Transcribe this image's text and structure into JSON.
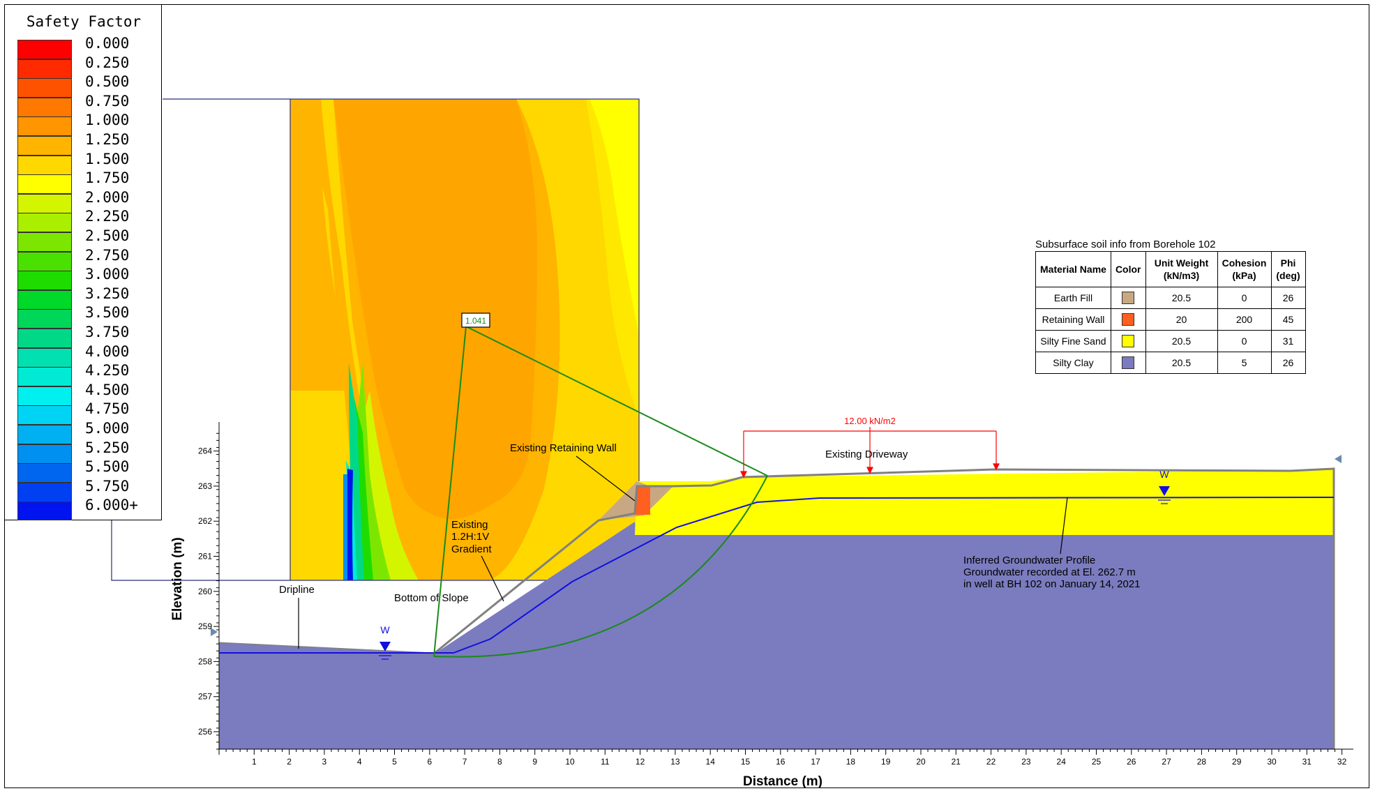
{
  "legend": {
    "title": "Safety Factor",
    "items": [
      {
        "label": "0.000",
        "color": "#ff0000"
      },
      {
        "label": "0.250",
        "color": "#ff2a00"
      },
      {
        "label": "0.500",
        "color": "#ff5200"
      },
      {
        "label": "0.750",
        "color": "#ff7800"
      },
      {
        "label": "1.000",
        "color": "#ff9500"
      },
      {
        "label": "1.250",
        "color": "#ffb400"
      },
      {
        "label": "1.500",
        "color": "#ffd800"
      },
      {
        "label": "1.750",
        "color": "#ffff00"
      },
      {
        "label": "2.000",
        "color": "#d4f500"
      },
      {
        "label": "2.250",
        "color": "#aaee00"
      },
      {
        "label": "2.500",
        "color": "#7de600"
      },
      {
        "label": "2.750",
        "color": "#4ae000"
      },
      {
        "label": "3.000",
        "color": "#1edc00"
      },
      {
        "label": "3.250",
        "color": "#00d82a"
      },
      {
        "label": "3.500",
        "color": "#00d65a"
      },
      {
        "label": "3.750",
        "color": "#00d888"
      },
      {
        "label": "4.000",
        "color": "#00e0b0"
      },
      {
        "label": "4.250",
        "color": "#00ead4"
      },
      {
        "label": "4.500",
        "color": "#00f0f0"
      },
      {
        "label": "4.750",
        "color": "#00d4f4"
      },
      {
        "label": "5.000",
        "color": "#00b0f0"
      },
      {
        "label": "5.250",
        "color": "#0090f0"
      },
      {
        "label": "5.500",
        "color": "#0066f0"
      },
      {
        "label": "5.750",
        "color": "#0040f0"
      },
      {
        "label": "6.000+",
        "color": "#0014f0"
      }
    ]
  },
  "axes": {
    "x_label": "Distance (m)",
    "y_label": "Elevation (m)",
    "x_ticks": [
      "1",
      "2",
      "3",
      "4",
      "5",
      "6",
      "7",
      "8",
      "9",
      "10",
      "11",
      "12",
      "13",
      "14",
      "15",
      "16",
      "17",
      "18",
      "19",
      "20",
      "21",
      "22",
      "23",
      "24",
      "25",
      "26",
      "27",
      "28",
      "29",
      "30",
      "31",
      "32"
    ],
    "y_ticks": [
      "256",
      "257",
      "258",
      "259",
      "260",
      "261",
      "262",
      "263",
      "264"
    ]
  },
  "slip_surface_factor": "1.041",
  "load_label": "12.00 kN/m2",
  "water_marker": "W",
  "annotations": {
    "retaining_wall": "Existing Retaining Wall",
    "driveway": "Existing Driveway",
    "gradient_line1": "Existing",
    "gradient_line2": "1.2H:1V",
    "gradient_line3": "Gradient",
    "dripline": "Dripline",
    "bottom_of_slope": "Bottom of Slope",
    "groundwater_line1": "Inferred Groundwater Profile",
    "groundwater_line2": "Groundwater recorded at El. 262.7 m",
    "groundwater_line3": "in well at BH 102 on January 14, 2021"
  },
  "soil_table": {
    "caption": "Subsurface soil info from Borehole 102",
    "headers": [
      "Material Name",
      "Color",
      "Unit Weight (kN/m3)",
      "Cohesion (kPa)",
      "Phi (deg)"
    ],
    "rows": [
      {
        "name": "Earth Fill",
        "color": "#c8a882",
        "unit_weight": "20.5",
        "cohesion": "0",
        "phi": "26"
      },
      {
        "name": "Retaining Wall",
        "color": "#ff6020",
        "unit_weight": "20",
        "cohesion": "200",
        "phi": "45"
      },
      {
        "name": "Silty Fine Sand",
        "color": "#ffff00",
        "unit_weight": "20.5",
        "cohesion": "0",
        "phi": "31"
      },
      {
        "name": "Silty Clay",
        "color": "#7b7bbf",
        "unit_weight": "20.5",
        "cohesion": "5",
        "phi": "26"
      }
    ]
  },
  "colors": {
    "clay": "#7b7bbf",
    "sand": "#ffff00",
    "fill": "#c8a882",
    "wall": "#ff6020",
    "water": "#1010e0",
    "slip": "#1a8a1a",
    "load": "#ff0000"
  }
}
